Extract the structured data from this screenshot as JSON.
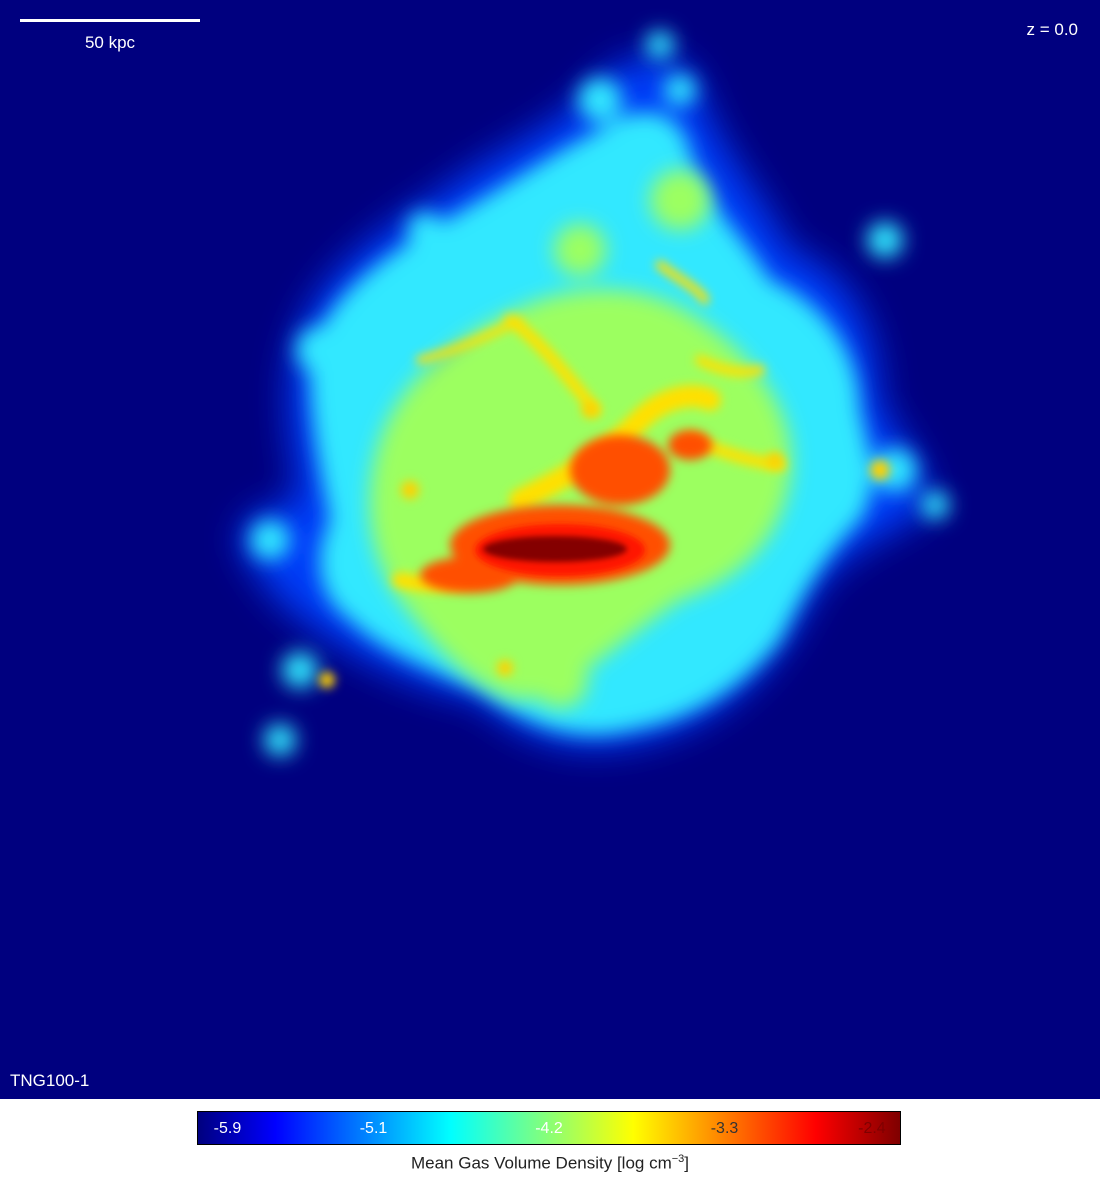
{
  "scale_bar": {
    "label": "50 kpc"
  },
  "redshift": {
    "label": "z = 0.0"
  },
  "simulation": {
    "label": "TNG100-1"
  },
  "colorbar": {
    "colormap": "jet",
    "colors": [
      "#00007f",
      "#0000ff",
      "#00ffff",
      "#ffff00",
      "#ff0000",
      "#7f0000"
    ],
    "ticks": [
      {
        "label": "-5.9",
        "color": "#ffffff"
      },
      {
        "label": "-5.1",
        "color": "#ffffff"
      },
      {
        "label": "-4.2",
        "color": "#ffffff"
      },
      {
        "label": "-3.3",
        "color": "#333333"
      },
      {
        "label": "-2.4",
        "color": "#7f0000"
      }
    ],
    "title_prefix": "Mean Gas Volume Density [log cm",
    "title_exponent": "−3",
    "title_suffix": "]"
  },
  "colors": {
    "background": "#00007f",
    "halo_outer": "#0050ff",
    "halo_mid": "#3ff0ff",
    "disk": "#a8ff55",
    "filament": "#ffe000",
    "core_outer": "#ff2000",
    "core": "#8a0000"
  }
}
